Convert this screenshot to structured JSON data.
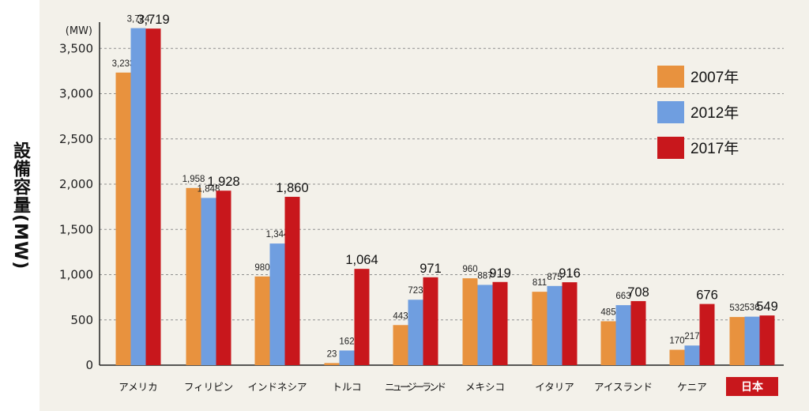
{
  "chart_data": {
    "type": "bar",
    "ylabel": "設備容量(MW)",
    "yunit": "(MW)",
    "ylim": [
      0,
      3700
    ],
    "yticks": [
      0,
      500,
      1000,
      1500,
      2000,
      2500,
      3000,
      3500
    ],
    "ytick_labels": [
      "0",
      "500",
      "1,000",
      "1,500",
      "2,000",
      "2,500",
      "3,000",
      "3,500"
    ],
    "grid": true,
    "legend_position": "right",
    "categories": [
      "アメリカ",
      "フィリピン",
      "インドネシア",
      "トルコ",
      "ニュージーランド",
      "メキシコ",
      "イタリア",
      "アイスランド",
      "ケニア",
      "日本"
    ],
    "highlight_category": "日本",
    "series": [
      {
        "name": "2007年",
        "color": "#e8923e",
        "values": [
          3233,
          1958,
          980,
          23,
          443,
          960,
          811,
          485,
          170,
          532
        ],
        "labels": [
          "3,233",
          "1,958",
          "980",
          "23",
          "443",
          "960",
          "811",
          "485",
          "170",
          "532"
        ]
      },
      {
        "name": "2012年",
        "color": "#6f9ee0",
        "values": [
          3724,
          1848,
          1344,
          162,
          723,
          887,
          875,
          663,
          217,
          536
        ],
        "labels": [
          "3,724",
          "1,848",
          "1,344",
          "162",
          "723",
          "887",
          "875",
          "663",
          "217",
          "536"
        ]
      },
      {
        "name": "2017年",
        "color": "#c8171c",
        "values": [
          3719,
          1928,
          1860,
          1064,
          971,
          919,
          916,
          708,
          676,
          549
        ],
        "labels": [
          "3,719",
          "1,928",
          "1,860",
          "1,064",
          "971",
          "919",
          "916",
          "708",
          "676",
          "549"
        ]
      }
    ]
  }
}
